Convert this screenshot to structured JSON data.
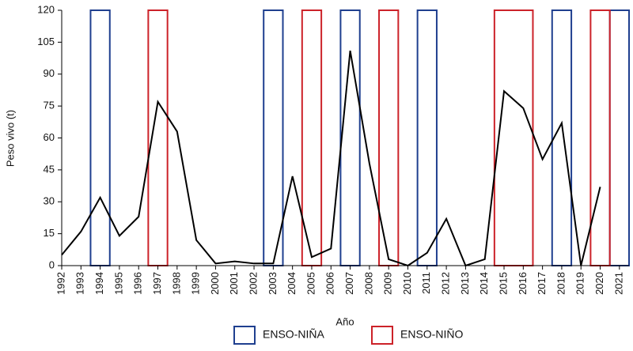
{
  "chart_data": {
    "type": "line",
    "x_label": "Año",
    "y_label": "Peso vivo (t)",
    "x": [
      1992,
      1993,
      1994,
      1995,
      1996,
      1997,
      1998,
      1999,
      2000,
      2001,
      2002,
      2003,
      2004,
      2005,
      2006,
      2007,
      2008,
      2009,
      2010,
      2011,
      2012,
      2013,
      2014,
      2015,
      2016,
      2017,
      2018,
      2019,
      2020,
      2021
    ],
    "series": [
      {
        "name": "Peso vivo",
        "color": "#000000",
        "values": [
          5,
          16,
          32,
          14,
          23,
          77,
          63,
          12,
          1,
          2,
          1,
          1,
          42,
          4,
          8,
          101,
          48,
          3,
          0,
          6,
          22,
          0,
          3,
          82,
          74,
          50,
          67,
          0,
          37,
          null
        ]
      }
    ],
    "enso": [
      {
        "name": "ENSO-NIÑA",
        "color": "#1f3f8f",
        "periods": [
          [
            1993.5,
            1994.5
          ],
          [
            2002.5,
            2003.5
          ],
          [
            2006.5,
            2007.5
          ],
          [
            2010.5,
            2011.5
          ],
          [
            2017.5,
            2018.5
          ],
          [
            2020.5,
            2021.5
          ]
        ]
      },
      {
        "name": "ENSO-NIÑO",
        "color": "#cc2229",
        "periods": [
          [
            1996.5,
            1997.5
          ],
          [
            2004.5,
            2005.5
          ],
          [
            2008.5,
            2009.5
          ],
          [
            2014.5,
            2016.5
          ],
          [
            2019.5,
            2020.5
          ]
        ]
      }
    ],
    "xlim": [
      1992,
      2021.5
    ],
    "xticks": [
      1992,
      1993,
      1994,
      1995,
      1996,
      1997,
      1998,
      1999,
      2000,
      2001,
      2002,
      2003,
      2004,
      2005,
      2006,
      2007,
      2008,
      2009,
      2010,
      2011,
      2012,
      2013,
      2014,
      2015,
      2016,
      2017,
      2018,
      2019,
      2020,
      2021
    ],
    "ylim": [
      0,
      120
    ],
    "yticks": [
      0,
      15,
      30,
      45,
      60,
      75,
      90,
      105,
      120
    ]
  }
}
